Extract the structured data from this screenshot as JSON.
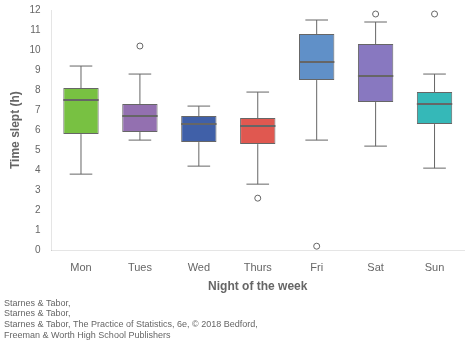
{
  "chart_data": {
    "type": "box",
    "categories": [
      "Mon",
      "Tues",
      "Wed",
      "Thurs",
      "Fri",
      "Sat",
      "Sun"
    ],
    "values": [
      {
        "whislo": 3.8,
        "q1": 5.8,
        "med": 7.5,
        "q3": 8.1,
        "whishi": 9.2,
        "fliers": []
      },
      {
        "whislo": 5.5,
        "q1": 5.9,
        "med": 6.7,
        "q3": 7.3,
        "whishi": 8.8,
        "fliers": [
          10.2
        ]
      },
      {
        "whislo": 4.2,
        "q1": 5.4,
        "med": 6.3,
        "q3": 6.7,
        "whishi": 7.2,
        "fliers": []
      },
      {
        "whislo": 3.3,
        "q1": 5.3,
        "med": 6.2,
        "q3": 6.6,
        "whishi": 7.9,
        "fliers": [
          2.6
        ]
      },
      {
        "whislo": 5.5,
        "q1": 8.5,
        "med": 9.4,
        "q3": 10.8,
        "whishi": 11.5,
        "fliers": [
          0.2
        ]
      },
      {
        "whislo": 5.2,
        "q1": 7.4,
        "med": 8.7,
        "q3": 10.3,
        "whishi": 11.4,
        "fliers": [
          11.8
        ]
      },
      {
        "whislo": 4.1,
        "q1": 6.3,
        "med": 7.3,
        "q3": 7.9,
        "whishi": 8.8,
        "fliers": [
          11.8
        ]
      }
    ],
    "colors": [
      "#78c142",
      "#9370b0",
      "#4060a8",
      "#e05850",
      "#6090c8",
      "#8878c0",
      "#35b8b8"
    ],
    "ylabel": "Time slept (h)",
    "xlabel": "Night of the week",
    "ylim": [
      0,
      12
    ],
    "yticks": [
      0,
      1,
      2,
      3,
      4,
      5,
      6,
      7,
      8,
      9,
      10,
      11,
      12
    ],
    "grid": false,
    "annotations": [
      "Starnes & Tabor, ",
      "Starnes & Tabor, "
    ],
    "caption": [
      "Starnes & Tabor, The Practice of Statistics, 6e, © 2018 Bedford,",
      "Freeman & Worth High School Publishers"
    ]
  }
}
